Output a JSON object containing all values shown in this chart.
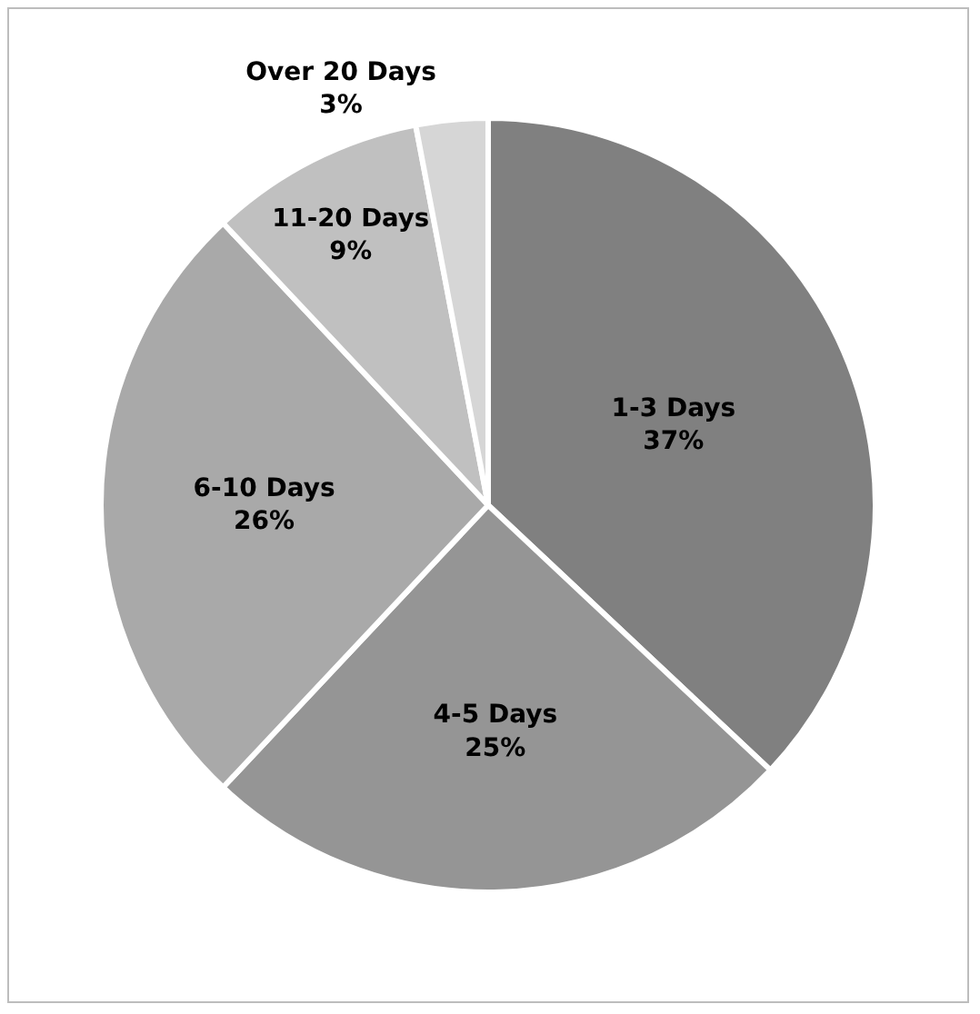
{
  "chart_data": {
    "type": "pie",
    "categories": [
      "1-3 Days",
      "4-5 Days",
      "6-10 Days",
      "11-20 Days",
      "Over 20 Days"
    ],
    "values": [
      37,
      25,
      26,
      9,
      3
    ],
    "value_labels": [
      "37%",
      "25%",
      "26%",
      "9%",
      "3%"
    ],
    "colors": [
      "#808080",
      "#959595",
      "#a9a9a9",
      "#c0c0c0",
      "#d6d6d6"
    ],
    "legend": false
  }
}
